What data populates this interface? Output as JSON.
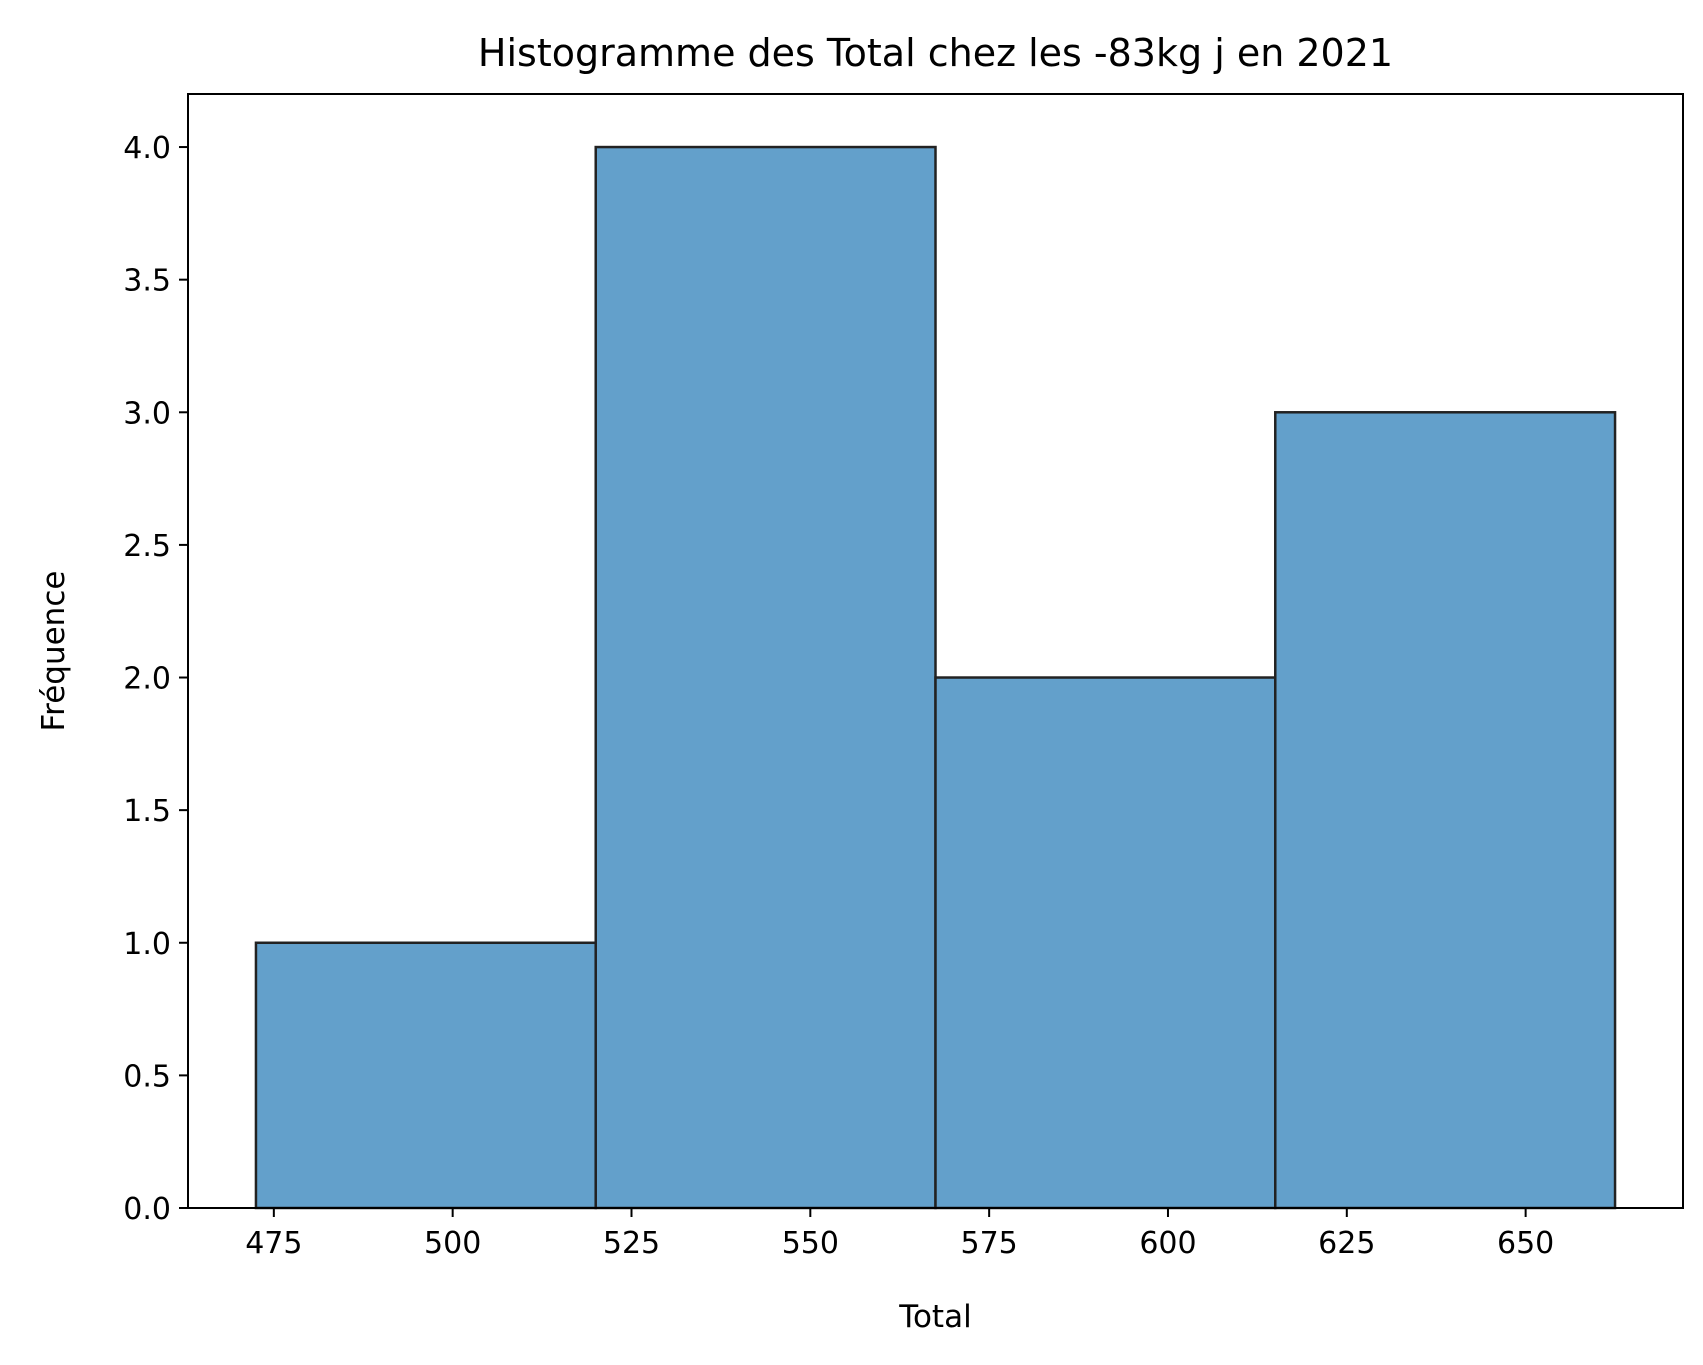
{
  "chart_data": {
    "type": "bar",
    "title": "Histogramme des Total chez les -83kg j en 2021",
    "xlabel": "Total",
    "ylabel": "Fréquence",
    "bins": [
      {
        "start": 472.5,
        "end": 520.0,
        "count": 1
      },
      {
        "start": 520.0,
        "end": 567.5,
        "count": 4
      },
      {
        "start": 567.5,
        "end": 615.0,
        "count": 2
      },
      {
        "start": 615.0,
        "end": 662.5,
        "count": 3
      }
    ],
    "xlim": [
      463.0,
      672.0
    ],
    "ylim": [
      0,
      4.2
    ],
    "xticks": [
      475,
      500,
      525,
      550,
      575,
      600,
      625,
      650
    ],
    "yticks": [
      "0.0",
      "0.5",
      "1.0",
      "1.5",
      "2.0",
      "2.5",
      "3.0",
      "3.5",
      "4.0"
    ],
    "bar_color": "#63a0cb",
    "bar_edge_color": "#222222",
    "grid": false,
    "legend": "none"
  }
}
